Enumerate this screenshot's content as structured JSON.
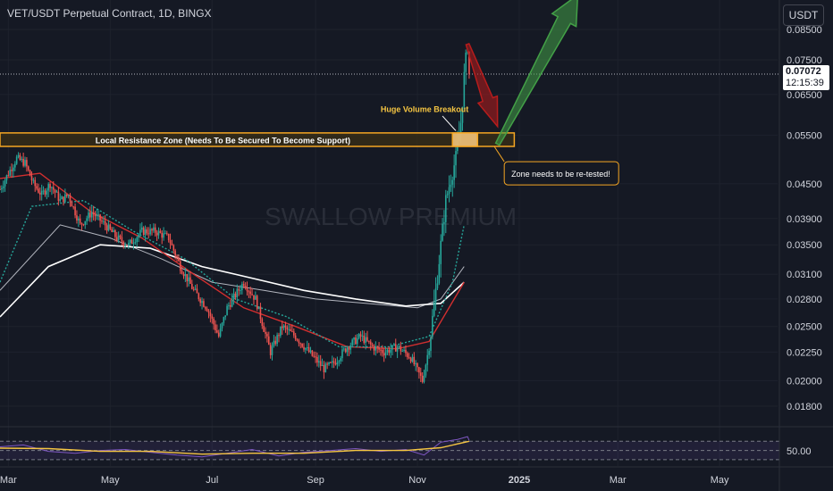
{
  "header": {
    "title": "VET/USDT Perpetual Contract, 1D, BINGX",
    "currency_button": "USDT"
  },
  "price_label": {
    "price": "0.07072",
    "countdown": "12:15:39"
  },
  "watermark": "SWALLOW PREMIUM",
  "rsi": {
    "level_label": "50.00"
  },
  "colors": {
    "background": "#151924",
    "up": "#26a69a",
    "down": "#ef5350",
    "zone_border": "#f5a623",
    "zone_fill": "#3a2f16",
    "ma_white": "#ffffff",
    "ma_red": "#d32f2f",
    "ma_green": "#26a69a",
    "rsi_line": "#7e57c2",
    "rsi_ma": "#f5c542",
    "arrow_red": "#b71c1c",
    "arrow_green": "#43a047"
  },
  "chart_data": {
    "type": "candlestick",
    "x_range": [
      "2024-02-25",
      "2025-05-25"
    ],
    "y_scale": "log",
    "x_tick_labels": [
      {
        "date": "2024-03-01",
        "label": "Mar"
      },
      {
        "date": "2024-05-01",
        "label": "May"
      },
      {
        "date": "2024-07-01",
        "label": "Jul"
      },
      {
        "date": "2024-09-01",
        "label": "Sep"
      },
      {
        "date": "2024-11-01",
        "label": "Nov"
      },
      {
        "date": "2025-01-01",
        "label": "2025"
      },
      {
        "date": "2025-03-01",
        "label": "Mar"
      },
      {
        "date": "2025-05-01",
        "label": "May"
      }
    ],
    "y_tick_labels": [
      "0.08500",
      "0.07500",
      "0.06500",
      "0.05500",
      "0.04500",
      "0.03900",
      "0.03500",
      "0.03100",
      "0.02800",
      "0.02500",
      "0.02250",
      "0.02000",
      "0.01800"
    ],
    "y_ticks": [
      0.085,
      0.075,
      0.065,
      0.055,
      0.045,
      0.039,
      0.035,
      0.031,
      0.028,
      0.025,
      0.0225,
      0.02,
      0.018
    ],
    "price_series": [
      [
        "2024-02-25",
        0.044
      ],
      [
        "2024-03-01",
        0.047
      ],
      [
        "2024-03-06",
        0.05
      ],
      [
        "2024-03-11",
        0.049
      ],
      [
        "2024-03-16",
        0.045
      ],
      [
        "2024-03-21",
        0.043
      ],
      [
        "2024-03-26",
        0.045
      ],
      [
        "2024-04-01",
        0.042
      ],
      [
        "2024-04-06",
        0.043
      ],
      [
        "2024-04-13",
        0.038
      ],
      [
        "2024-04-20",
        0.04
      ],
      [
        "2024-04-28",
        0.038
      ],
      [
        "2024-05-05",
        0.036
      ],
      [
        "2024-05-12",
        0.035
      ],
      [
        "2024-05-20",
        0.037
      ],
      [
        "2024-05-28",
        0.037
      ],
      [
        "2024-06-05",
        0.036
      ],
      [
        "2024-06-12",
        0.032
      ],
      [
        "2024-06-20",
        0.029
      ],
      [
        "2024-06-28",
        0.027
      ],
      [
        "2024-07-05",
        0.024
      ],
      [
        "2024-07-10",
        0.027
      ],
      [
        "2024-07-20",
        0.03
      ],
      [
        "2024-07-27",
        0.028
      ],
      [
        "2024-08-05",
        0.0225
      ],
      [
        "2024-08-12",
        0.025
      ],
      [
        "2024-08-20",
        0.024
      ],
      [
        "2024-08-28",
        0.0225
      ],
      [
        "2024-09-06",
        0.021
      ],
      [
        "2024-09-12",
        0.0215
      ],
      [
        "2024-09-20",
        0.023
      ],
      [
        "2024-09-28",
        0.024
      ],
      [
        "2024-10-05",
        0.023
      ],
      [
        "2024-10-12",
        0.0225
      ],
      [
        "2024-10-20",
        0.023
      ],
      [
        "2024-10-28",
        0.022
      ],
      [
        "2024-11-04",
        0.02
      ],
      [
        "2024-11-08",
        0.023
      ],
      [
        "2024-11-12",
        0.029
      ],
      [
        "2024-11-15",
        0.035
      ],
      [
        "2024-11-18",
        0.042
      ],
      [
        "2024-11-21",
        0.046
      ],
      [
        "2024-11-24",
        0.05
      ],
      [
        "2024-11-27",
        0.058
      ],
      [
        "2024-11-29",
        0.07
      ],
      [
        "2024-12-01",
        0.08
      ],
      [
        "2024-12-02",
        0.0707
      ]
    ],
    "ma_white": [
      [
        "2024-02-25",
        0.026
      ],
      [
        "2024-03-25",
        0.032
      ],
      [
        "2024-04-25",
        0.035
      ],
      [
        "2024-05-25",
        0.0345
      ],
      [
        "2024-06-25",
        0.032
      ],
      [
        "2024-07-25",
        0.0305
      ],
      [
        "2024-08-25",
        0.029
      ],
      [
        "2024-09-25",
        0.028
      ],
      [
        "2024-10-25",
        0.0272
      ],
      [
        "2024-11-15",
        0.0275
      ],
      [
        "2024-11-29",
        0.03
      ]
    ],
    "ma_gray": [
      [
        "2024-02-25",
        0.029
      ],
      [
        "2024-04-01",
        0.038
      ],
      [
        "2024-05-01",
        0.036
      ],
      [
        "2024-06-01",
        0.033
      ],
      [
        "2024-07-01",
        0.03
      ],
      [
        "2024-08-01",
        0.029
      ],
      [
        "2024-09-01",
        0.028
      ],
      [
        "2024-10-01",
        0.0275
      ],
      [
        "2024-11-01",
        0.027
      ],
      [
        "2024-11-15",
        0.028
      ],
      [
        "2024-11-29",
        0.032
      ]
    ],
    "ma_red": [
      [
        "2024-02-25",
        0.046
      ],
      [
        "2024-03-20",
        0.047
      ],
      [
        "2024-04-20",
        0.04
      ],
      [
        "2024-05-20",
        0.036
      ],
      [
        "2024-06-20",
        0.031
      ],
      [
        "2024-07-20",
        0.027
      ],
      [
        "2024-08-20",
        0.025
      ],
      [
        "2024-09-20",
        0.023
      ],
      [
        "2024-10-20",
        0.0228
      ],
      [
        "2024-11-08",
        0.0235
      ],
      [
        "2024-11-29",
        0.03
      ]
    ],
    "ma_green": [
      [
        "2024-02-25",
        0.03
      ],
      [
        "2024-03-15",
        0.041
      ],
      [
        "2024-04-15",
        0.042
      ],
      [
        "2024-05-15",
        0.037
      ],
      [
        "2024-06-15",
        0.033
      ],
      [
        "2024-07-15",
        0.028
      ],
      [
        "2024-08-15",
        0.026
      ],
      [
        "2024-09-15",
        0.023
      ],
      [
        "2024-10-15",
        0.023
      ],
      [
        "2024-11-08",
        0.024
      ],
      [
        "2024-11-22",
        0.03
      ],
      [
        "2024-11-29",
        0.038
      ]
    ],
    "annotations": {
      "resistance_zone": {
        "label": "Local Resistance Zone (Needs To Be Secured To Become Support)",
        "y_low": 0.0525,
        "y_high": 0.0555,
        "x_start": "2024-02-25",
        "x_end": "2024-12-29"
      },
      "breakout_box": {
        "x_start": "2024-11-22",
        "x_end": "2024-12-07",
        "y_low": 0.0525,
        "y_high": 0.0555
      },
      "breakout_label": {
        "text": "Huge Volume Breakout",
        "x": "2024-10-10",
        "y": 0.0605
      },
      "retest_callout": {
        "text": "Zone needs to be re-tested!",
        "x": "2024-12-23",
        "y": 0.047
      },
      "red_arrow": {
        "from": [
          "2024-12-01",
          0.08
        ],
        "to": [
          "2024-12-19",
          0.057
        ]
      },
      "green_arrow": {
        "from": [
          "2024-12-19",
          0.053
        ],
        "to": [
          "2025-02-05",
          0.098
        ]
      }
    },
    "rsi": {
      "y_range": [
        20,
        90
      ],
      "bands": [
        70,
        50,
        30
      ],
      "values": [
        [
          "2024-02-25",
          58
        ],
        [
          "2024-03-10",
          62
        ],
        [
          "2024-03-25",
          48
        ],
        [
          "2024-04-10",
          44
        ],
        [
          "2024-04-25",
          50
        ],
        [
          "2024-05-10",
          52
        ],
        [
          "2024-05-25",
          46
        ],
        [
          "2024-06-10",
          40
        ],
        [
          "2024-06-25",
          36
        ],
        [
          "2024-07-10",
          44
        ],
        [
          "2024-07-25",
          52
        ],
        [
          "2024-08-10",
          38
        ],
        [
          "2024-08-25",
          46
        ],
        [
          "2024-09-10",
          50
        ],
        [
          "2024-09-25",
          54
        ],
        [
          "2024-10-10",
          48
        ],
        [
          "2024-10-25",
          52
        ],
        [
          "2024-11-05",
          40
        ],
        [
          "2024-11-15",
          68
        ],
        [
          "2024-11-25",
          74
        ],
        [
          "2024-12-01",
          80
        ],
        [
          "2024-12-02",
          72
        ]
      ],
      "ma_values": [
        [
          "2024-02-25",
          55
        ],
        [
          "2024-03-25",
          54
        ],
        [
          "2024-04-25",
          48
        ],
        [
          "2024-05-25",
          48
        ],
        [
          "2024-06-25",
          42
        ],
        [
          "2024-07-25",
          44
        ],
        [
          "2024-08-25",
          44
        ],
        [
          "2024-09-25",
          50
        ],
        [
          "2024-10-25",
          50
        ],
        [
          "2024-11-15",
          56
        ],
        [
          "2024-12-02",
          70
        ]
      ]
    }
  }
}
